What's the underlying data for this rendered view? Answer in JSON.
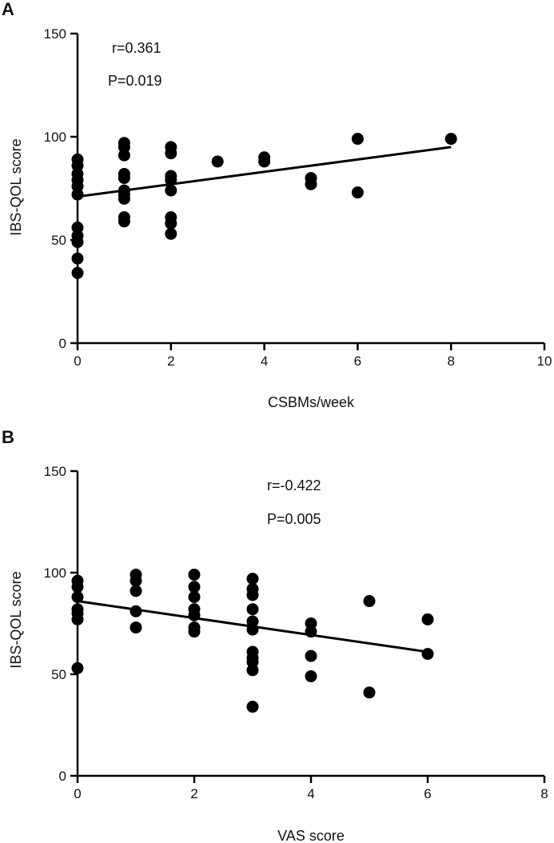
{
  "chart_data": [
    {
      "type": "scatter",
      "panel": "A",
      "title": "",
      "xlabel": "CSBMs/week",
      "ylabel": "IBS-QOL score",
      "xlim": [
        0,
        10
      ],
      "ylim": [
        0,
        150
      ],
      "xticks": [
        0,
        2,
        4,
        6,
        8,
        10
      ],
      "yticks": [
        0,
        50,
        100,
        150
      ],
      "grid": false,
      "annotations": [
        "r=0.361",
        "P=0.019"
      ],
      "regression_line": {
        "x": [
          0,
          8
        ],
        "y": [
          71,
          95
        ]
      },
      "points": [
        {
          "x": 0,
          "y": 89
        },
        {
          "x": 0,
          "y": 86
        },
        {
          "x": 0,
          "y": 82
        },
        {
          "x": 0,
          "y": 79
        },
        {
          "x": 0,
          "y": 76
        },
        {
          "x": 0,
          "y": 72
        },
        {
          "x": 0,
          "y": 56
        },
        {
          "x": 0,
          "y": 52
        },
        {
          "x": 0,
          "y": 49
        },
        {
          "x": 0,
          "y": 41
        },
        {
          "x": 0,
          "y": 34
        },
        {
          "x": 1,
          "y": 97
        },
        {
          "x": 1,
          "y": 95
        },
        {
          "x": 1,
          "y": 91
        },
        {
          "x": 1,
          "y": 82
        },
        {
          "x": 1,
          "y": 80
        },
        {
          "x": 1,
          "y": 74
        },
        {
          "x": 1,
          "y": 72
        },
        {
          "x": 1,
          "y": 70
        },
        {
          "x": 1,
          "y": 61
        },
        {
          "x": 1,
          "y": 59
        },
        {
          "x": 2,
          "y": 95
        },
        {
          "x": 2,
          "y": 92
        },
        {
          "x": 2,
          "y": 81
        },
        {
          "x": 2,
          "y": 79
        },
        {
          "x": 2,
          "y": 74
        },
        {
          "x": 2,
          "y": 61
        },
        {
          "x": 2,
          "y": 58
        },
        {
          "x": 2,
          "y": 53
        },
        {
          "x": 3,
          "y": 88
        },
        {
          "x": 4,
          "y": 90
        },
        {
          "x": 4,
          "y": 88
        },
        {
          "x": 5,
          "y": 80
        },
        {
          "x": 5,
          "y": 77
        },
        {
          "x": 6,
          "y": 99
        },
        {
          "x": 6,
          "y": 73
        },
        {
          "x": 8,
          "y": 99
        }
      ]
    },
    {
      "type": "scatter",
      "panel": "B",
      "title": "",
      "xlabel": "VAS score",
      "ylabel": "IBS-QOL score",
      "xlim": [
        0,
        8
      ],
      "ylim": [
        0,
        150
      ],
      "xticks": [
        0,
        2,
        4,
        6,
        8
      ],
      "yticks": [
        0,
        50,
        100,
        150
      ],
      "grid": false,
      "annotations": [
        "r=-0.422",
        "P=0.005"
      ],
      "regression_line": {
        "x": [
          0,
          6
        ],
        "y": [
          86,
          61
        ]
      },
      "points": [
        {
          "x": 0,
          "y": 96
        },
        {
          "x": 0,
          "y": 93
        },
        {
          "x": 0,
          "y": 88
        },
        {
          "x": 0,
          "y": 82
        },
        {
          "x": 0,
          "y": 80
        },
        {
          "x": 0,
          "y": 77
        },
        {
          "x": 0,
          "y": 53
        },
        {
          "x": 1,
          "y": 99
        },
        {
          "x": 1,
          "y": 96
        },
        {
          "x": 1,
          "y": 91
        },
        {
          "x": 1,
          "y": 81
        },
        {
          "x": 1,
          "y": 73
        },
        {
          "x": 2,
          "y": 99
        },
        {
          "x": 2,
          "y": 93
        },
        {
          "x": 2,
          "y": 88
        },
        {
          "x": 2,
          "y": 82
        },
        {
          "x": 2,
          "y": 79
        },
        {
          "x": 2,
          "y": 73
        },
        {
          "x": 2,
          "y": 71
        },
        {
          "x": 3,
          "y": 97
        },
        {
          "x": 3,
          "y": 92
        },
        {
          "x": 3,
          "y": 89
        },
        {
          "x": 3,
          "y": 82
        },
        {
          "x": 3,
          "y": 76
        },
        {
          "x": 3,
          "y": 72
        },
        {
          "x": 3,
          "y": 61
        },
        {
          "x": 3,
          "y": 58
        },
        {
          "x": 3,
          "y": 56
        },
        {
          "x": 3,
          "y": 52
        },
        {
          "x": 3,
          "y": 34
        },
        {
          "x": 4,
          "y": 75
        },
        {
          "x": 4,
          "y": 71
        },
        {
          "x": 4,
          "y": 59
        },
        {
          "x": 4,
          "y": 49
        },
        {
          "x": 5,
          "y": 86
        },
        {
          "x": 5,
          "y": 41
        },
        {
          "x": 6,
          "y": 77
        },
        {
          "x": 6,
          "y": 60
        }
      ]
    }
  ],
  "style": {
    "marker_color": "#000000",
    "axis_color": "#000000",
    "text_color": "#111111"
  }
}
